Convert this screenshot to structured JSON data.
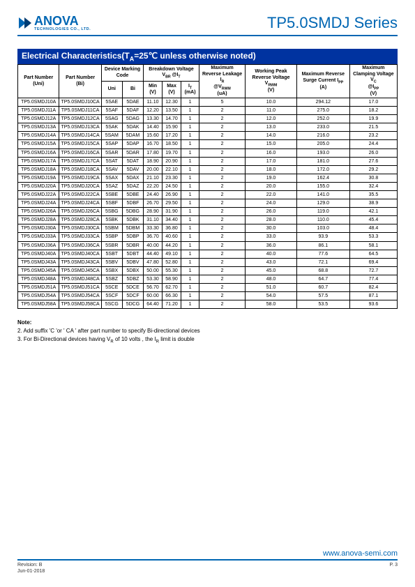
{
  "header": {
    "logo_text": "ANOVA",
    "logo_sub": "TECHNOLOGIES CO., LTD.",
    "series_title": "TP5.0SMDJ Series"
  },
  "section": {
    "title": "Electrical Characteristics(T",
    "title_sub": "A",
    "title_rest": "=25℃ unless otherwise noted)"
  },
  "table": {
    "headers": {
      "part_uni": "Part Number (Uni)",
      "part_bi": "Part Number (Bi)",
      "marking": "Device Marking Code",
      "uni": "Uni",
      "bi": "Bi",
      "breakdown": "Breakdown Voltage V",
      "breakdown_sub": "BR",
      "breakdown_at": "@I",
      "breakdown_t": "T",
      "min": "Min (V)",
      "max": "Max (V)",
      "it": "I",
      "it_sub": "T",
      "it_unit": " (mA)",
      "max_rev_leak": "Maximum Reverse Leakage I",
      "max_rev_leak_sub": "R",
      "max_rev_leak_at": " @V",
      "max_rev_leak_rwm": "RWM",
      "max_rev_leak_unit": " (uA)",
      "work_peak": "Working Peak Reverse Voltage V",
      "work_peak_sub": "RWM",
      "work_peak_unit": " (V)",
      "max_surge": "Maximum Reverse Surge Current I",
      "max_surge_sub": "PP",
      "max_surge_unit": " (A)",
      "max_clamp": "Maximum Clamping Voltage V",
      "max_clamp_sub": "C",
      "max_clamp_at": " @I",
      "max_clamp_pp": "PP",
      "max_clamp_unit": " (V)"
    },
    "rows": [
      [
        "TP5.0SMDJ10A",
        "TP5.0SMDJ10CA",
        "5SAE",
        "5DAE",
        "11.10",
        "12.30",
        "1",
        "5",
        "10.0",
        "294.12",
        "17.0"
      ],
      [
        "TP5.0SMDJ11A",
        "TP5.0SMDJ11CA",
        "5SAF",
        "5DAF",
        "12.20",
        "13.50",
        "1",
        "2",
        "11.0",
        "275.0",
        "18.2"
      ],
      [
        "TP5.0SMDJ12A",
        "TP5.0SMDJ12CA",
        "5SAG",
        "5DAG",
        "13.30",
        "14.70",
        "1",
        "2",
        "12.0",
        "252.0",
        "19.9"
      ],
      [
        "TP5.0SMDJ13A",
        "TP5.0SMDJ13CA",
        "5SAK",
        "5DAK",
        "14.40",
        "15.90",
        "1",
        "2",
        "13.0",
        "233.0",
        "21.5"
      ],
      [
        "TP5.0SMDJ14A",
        "TP5.0SMDJ14CA",
        "5SAM",
        "5DAM",
        "15.60",
        "17.20",
        "1",
        "2",
        "14.0",
        "216.0",
        "23.2"
      ],
      [
        "TP5.0SMDJ15A",
        "TP5.0SMDJ15CA",
        "5SAP",
        "5DAP",
        "16.70",
        "18.50",
        "1",
        "2",
        "15.0",
        "205.0",
        "24.4"
      ],
      [
        "TP5.0SMDJ16A",
        "TP5.0SMDJ16CA",
        "5SAR",
        "5DAR",
        "17.80",
        "19.70",
        "1",
        "2",
        "16.0",
        "193.0",
        "26.0"
      ],
      [
        "TP5.0SMDJ17A",
        "TP5.0SMDJ17CA",
        "5SAT",
        "5DAT",
        "18.90",
        "20.90",
        "1",
        "2",
        "17.0",
        "181.0",
        "27.6"
      ],
      [
        "TP5.0SMDJ18A",
        "TP5.0SMDJ18CA",
        "5SAV",
        "5DAV",
        "20.00",
        "22.10",
        "1",
        "2",
        "18.0",
        "172.0",
        "29.2"
      ],
      [
        "TP5.0SMDJ19A",
        "TP5.0SMDJ19CA",
        "5SAX",
        "5DAX",
        "21.10",
        "23.30",
        "1",
        "2",
        "19.0",
        "162.4",
        "30.8"
      ],
      [
        "TP5.0SMDJ20A",
        "TP5.0SMDJ20CA",
        "5SAZ",
        "5DAZ",
        "22.20",
        "24.50",
        "1",
        "2",
        "20.0",
        "155.0",
        "32.4"
      ],
      [
        "TP5.0SMDJ22A",
        "TP5.0SMDJ22CA",
        "5SBE",
        "5DBE",
        "24.40",
        "26.90",
        "1",
        "2",
        "22.0",
        "141.0",
        "35.5"
      ],
      [
        "TP5.0SMDJ24A",
        "TP5.0SMDJ24CA",
        "5SBF",
        "5DBF",
        "26.70",
        "29.50",
        "1",
        "2",
        "24.0",
        "129.0",
        "38.9"
      ],
      [
        "TP5.0SMDJ26A",
        "TP5.0SMDJ26CA",
        "5SBG",
        "5DBG",
        "28.90",
        "31.90",
        "1",
        "2",
        "26.0",
        "119.0",
        "42.1"
      ],
      [
        "TP5.0SMDJ28A",
        "TP5.0SMDJ28CA",
        "5SBK",
        "5DBK",
        "31.10",
        "34.40",
        "1",
        "2",
        "28.0",
        "110.0",
        "45.4"
      ],
      [
        "TP5.0SMDJ30A",
        "TP5.0SMDJ30CA",
        "5SBM",
        "5DBM",
        "33.30",
        "36.80",
        "1",
        "2",
        "30.0",
        "103.0",
        "48.4"
      ],
      [
        "TP5.0SMDJ33A",
        "TP5.0SMDJ33CA",
        "5SBP",
        "5DBP",
        "36.70",
        "40.60",
        "1",
        "2",
        "33.0",
        "93.9",
        "53.3"
      ],
      [
        "TP5.0SMDJ36A",
        "TP5.0SMDJ36CA",
        "5SBR",
        "5DBR",
        "40.00",
        "44.20",
        "1",
        "2",
        "36.0",
        "86.1",
        "58.1"
      ],
      [
        "TP5.0SMDJ40A",
        "TP5.0SMDJ40CA",
        "5SBT",
        "5DBT",
        "44.40",
        "49.10",
        "1",
        "2",
        "40.0",
        "77.6",
        "64.5"
      ],
      [
        "TP5.0SMDJ43A",
        "TP5.0SMDJ43CA",
        "5SBV",
        "5DBV",
        "47.80",
        "52.80",
        "1",
        "2",
        "43.0",
        "72.1",
        "69.4"
      ],
      [
        "TP5.0SMDJ45A",
        "TP5.0SMDJ45CA",
        "5SBX",
        "5DBX",
        "50.00",
        "55.30",
        "1",
        "2",
        "45.0",
        "68.8",
        "72.7"
      ],
      [
        "TP5.0SMDJ48A",
        "TP5.0SMDJ48CA",
        "5SBZ",
        "5DBZ",
        "53.30",
        "58.90",
        "1",
        "2",
        "48.0",
        "64.7",
        "77.4"
      ],
      [
        "TP5.0SMDJ51A",
        "TP5.0SMDJ51CA",
        "5SCE",
        "5DCE",
        "56.70",
        "62.70",
        "1",
        "2",
        "51.0",
        "60.7",
        "82.4"
      ],
      [
        "TP5.0SMDJ54A",
        "TP5.0SMDJ54CA",
        "5SCF",
        "5DCF",
        "60.00",
        "66.30",
        "1",
        "2",
        "54.0",
        "57.5",
        "87.1"
      ],
      [
        "TP5.0SMDJ58A",
        "TP5.0SMDJ58CA",
        "5SCG",
        "5DCG",
        "64.40",
        "71.20",
        "1",
        "2",
        "58.0",
        "53.5",
        "93.6"
      ]
    ]
  },
  "notes": {
    "title": "Note:",
    "n2": "2. Add suffix 'C 'or ' CA ' after part number to specify Bi-directional devices",
    "n3": "3. For Bi-Directional devices having V",
    "n3_sub": "R",
    "n3_rest": " of 10 volts , the I",
    "n3_sub2": "R",
    "n3_rest2": " limit is double"
  },
  "footer": {
    "url": "www.anova-semi.com",
    "revision": "Revision: B",
    "date": "Jun-01-2018",
    "page": "P. 3"
  },
  "colors": {
    "brand": "#0066b3",
    "section_bg": "#0033a0"
  }
}
